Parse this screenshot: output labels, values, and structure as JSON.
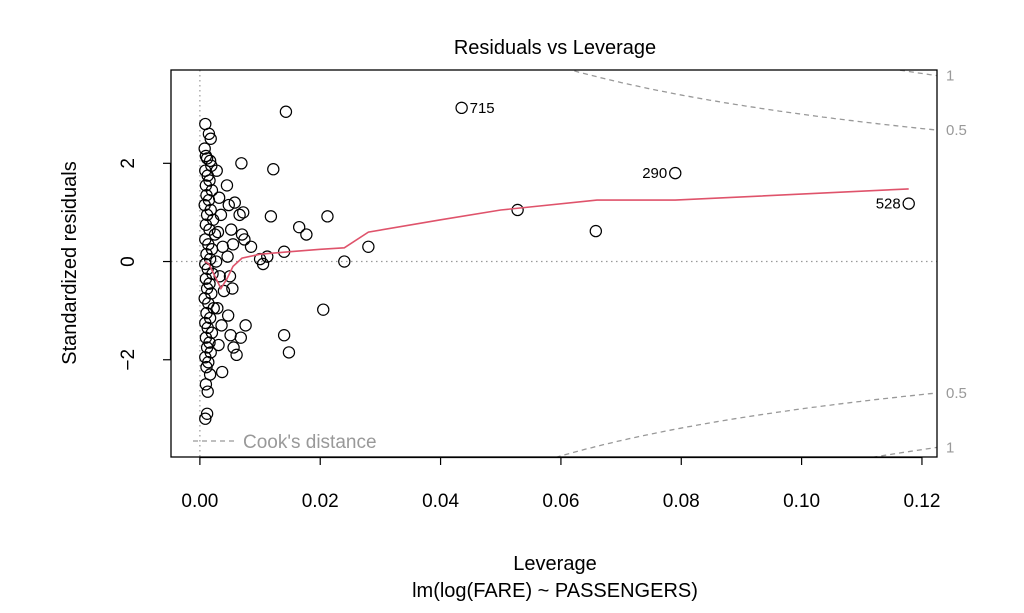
{
  "chart_data": {
    "type": "scatter",
    "title": "Residuals vs Leverage",
    "xlabel": "Leverage",
    "subtitle": "lm(log(FARE) ~ PASSENGERS)",
    "ylabel": "Standardized residuals",
    "xlim": [
      -0.0048,
      0.1225
    ],
    "ylim": [
      -3.98,
      3.9
    ],
    "x_ticks": [
      0.0,
      0.02,
      0.04,
      0.06,
      0.08,
      0.1,
      0.12
    ],
    "x_tick_labels": [
      "0.00",
      "0.02",
      "0.04",
      "0.06",
      "0.08",
      "0.10",
      "0.12"
    ],
    "y_ticks": [
      -2,
      0,
      2
    ],
    "y_tick_labels": [
      "−2",
      "0",
      "2"
    ],
    "reference_lines": {
      "x": 0,
      "y": 0
    },
    "points": [
      {
        "x": 0.0009,
        "y": 2.8
      },
      {
        "x": 0.0015,
        "y": 2.6
      },
      {
        "x": 0.0018,
        "y": 2.5
      },
      {
        "x": 0.0008,
        "y": 2.3
      },
      {
        "x": 0.001,
        "y": 2.15
      },
      {
        "x": 0.0012,
        "y": 2.1
      },
      {
        "x": 0.0017,
        "y": 2.05
      },
      {
        "x": 0.0019,
        "y": 1.95
      },
      {
        "x": 0.0009,
        "y": 1.85
      },
      {
        "x": 0.0013,
        "y": 1.75
      },
      {
        "x": 0.0016,
        "y": 1.65
      },
      {
        "x": 0.001,
        "y": 1.55
      },
      {
        "x": 0.002,
        "y": 1.45
      },
      {
        "x": 0.0011,
        "y": 1.35
      },
      {
        "x": 0.0015,
        "y": 1.25
      },
      {
        "x": 0.0008,
        "y": 1.15
      },
      {
        "x": 0.0018,
        "y": 1.05
      },
      {
        "x": 0.0012,
        "y": 0.95
      },
      {
        "x": 0.0022,
        "y": 0.85
      },
      {
        "x": 0.001,
        "y": 0.75
      },
      {
        "x": 0.0016,
        "y": 0.65
      },
      {
        "x": 0.0025,
        "y": 0.55
      },
      {
        "x": 0.0009,
        "y": 0.45
      },
      {
        "x": 0.0014,
        "y": 0.35
      },
      {
        "x": 0.002,
        "y": 0.25
      },
      {
        "x": 0.0011,
        "y": 0.15
      },
      {
        "x": 0.0017,
        "y": 0.05
      },
      {
        "x": 0.0009,
        "y": -0.05
      },
      {
        "x": 0.0013,
        "y": -0.15
      },
      {
        "x": 0.0021,
        "y": -0.25
      },
      {
        "x": 0.001,
        "y": -0.35
      },
      {
        "x": 0.0016,
        "y": -0.45
      },
      {
        "x": 0.0012,
        "y": -0.55
      },
      {
        "x": 0.0019,
        "y": -0.65
      },
      {
        "x": 0.0008,
        "y": -0.75
      },
      {
        "x": 0.0014,
        "y": -0.85
      },
      {
        "x": 0.0023,
        "y": -0.95
      },
      {
        "x": 0.0011,
        "y": -1.05
      },
      {
        "x": 0.0017,
        "y": -1.15
      },
      {
        "x": 0.0009,
        "y": -1.25
      },
      {
        "x": 0.0013,
        "y": -1.35
      },
      {
        "x": 0.002,
        "y": -1.45
      },
      {
        "x": 0.001,
        "y": -1.55
      },
      {
        "x": 0.0016,
        "y": -1.65
      },
      {
        "x": 0.0012,
        "y": -1.75
      },
      {
        "x": 0.0018,
        "y": -1.85
      },
      {
        "x": 0.0009,
        "y": -1.95
      },
      {
        "x": 0.0014,
        "y": -2.05
      },
      {
        "x": 0.0011,
        "y": -2.15
      },
      {
        "x": 0.0017,
        "y": -2.3
      },
      {
        "x": 0.001,
        "y": -2.5
      },
      {
        "x": 0.0013,
        "y": -2.65
      },
      {
        "x": 0.0012,
        "y": -3.1
      },
      {
        "x": 0.0009,
        "y": -3.2
      },
      {
        "x": 0.0028,
        "y": 1.85
      },
      {
        "x": 0.0032,
        "y": 1.3
      },
      {
        "x": 0.0035,
        "y": 0.95
      },
      {
        "x": 0.003,
        "y": 0.6
      },
      {
        "x": 0.0038,
        "y": 0.3
      },
      {
        "x": 0.0027,
        "y": 0.0
      },
      {
        "x": 0.0033,
        "y": -0.3
      },
      {
        "x": 0.004,
        "y": -0.6
      },
      {
        "x": 0.0029,
        "y": -0.95
      },
      {
        "x": 0.0036,
        "y": -1.3
      },
      {
        "x": 0.0031,
        "y": -1.7
      },
      {
        "x": 0.0037,
        "y": -2.25
      },
      {
        "x": 0.0045,
        "y": 1.55
      },
      {
        "x": 0.0048,
        "y": 1.15
      },
      {
        "x": 0.0052,
        "y": 0.65
      },
      {
        "x": 0.0055,
        "y": 0.35
      },
      {
        "x": 0.0046,
        "y": 0.1
      },
      {
        "x": 0.005,
        "y": -0.3
      },
      {
        "x": 0.0054,
        "y": -0.55
      },
      {
        "x": 0.0047,
        "y": -1.1
      },
      {
        "x": 0.0051,
        "y": -1.5
      },
      {
        "x": 0.0056,
        "y": -1.75
      },
      {
        "x": 0.0058,
        "y": 1.2
      },
      {
        "x": 0.0061,
        "y": -1.9
      },
      {
        "x": 0.0066,
        "y": 0.95
      },
      {
        "x": 0.0069,
        "y": 2.0
      },
      {
        "x": 0.007,
        "y": 0.55
      },
      {
        "x": 0.0072,
        "y": 1.0
      },
      {
        "x": 0.0074,
        "y": 0.45
      },
      {
        "x": 0.0068,
        "y": -1.55
      },
      {
        "x": 0.0076,
        "y": -1.3
      },
      {
        "x": 0.0085,
        "y": 0.3
      },
      {
        "x": 0.01,
        "y": 0.05
      },
      {
        "x": 0.0105,
        "y": -0.05
      },
      {
        "x": 0.0112,
        "y": 0.1
      },
      {
        "x": 0.0118,
        "y": 0.92
      },
      {
        "x": 0.0122,
        "y": 1.88
      },
      {
        "x": 0.014,
        "y": 0.2
      },
      {
        "x": 0.014,
        "y": -1.5
      },
      {
        "x": 0.0143,
        "y": 3.05
      },
      {
        "x": 0.0148,
        "y": -1.85
      },
      {
        "x": 0.0165,
        "y": 0.7
      },
      {
        "x": 0.0177,
        "y": 0.55
      },
      {
        "x": 0.0205,
        "y": -0.98
      },
      {
        "x": 0.0212,
        "y": 0.92
      },
      {
        "x": 0.024,
        "y": 0.0
      },
      {
        "x": 0.028,
        "y": 0.3
      },
      {
        "x": 0.0435,
        "y": 3.13
      },
      {
        "x": 0.0528,
        "y": 1.05
      },
      {
        "x": 0.0658,
        "y": 0.62
      },
      {
        "x": 0.079,
        "y": 1.8
      },
      {
        "x": 0.1178,
        "y": 1.18
      }
    ],
    "point_labels": [
      {
        "x": 0.0435,
        "y": 3.13,
        "label": "715",
        "side": "right"
      },
      {
        "x": 0.079,
        "y": 1.8,
        "label": "290",
        "side": "left"
      },
      {
        "x": 0.1178,
        "y": 1.18,
        "label": "528",
        "side": "left"
      }
    ],
    "smooth_line": {
      "color": "#DF536B",
      "x": [
        0.0008,
        0.0015,
        0.0025,
        0.0035,
        0.0045,
        0.0055,
        0.007,
        0.01,
        0.015,
        0.02,
        0.024,
        0.028,
        0.04,
        0.05,
        0.066,
        0.079,
        0.1178
      ],
      "y": [
        0.0,
        -0.05,
        -0.3,
        -0.55,
        -0.35,
        -0.1,
        0.07,
        0.15,
        0.2,
        0.25,
        0.28,
        0.6,
        0.85,
        1.05,
        1.25,
        1.25,
        1.48
      ]
    },
    "cooks_levels": [
      {
        "level": 0.5,
        "label": "0.5"
      },
      {
        "level": 1,
        "label": "1"
      }
    ],
    "legend": {
      "label": "Cook's distance",
      "position": "bottom-left"
    }
  }
}
